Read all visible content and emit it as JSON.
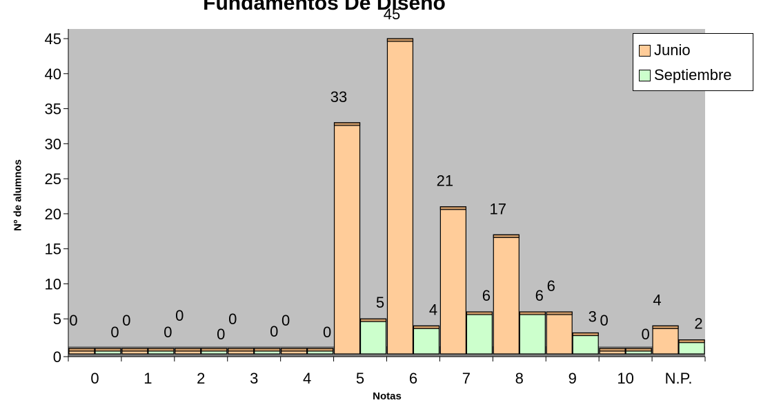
{
  "chart_data": {
    "type": "bar",
    "title": "Fundamentos De Diseño",
    "xlabel": "Notas",
    "ylabel": "Nº de alumnos",
    "categories": [
      "0",
      "1",
      "2",
      "3",
      "4",
      "5",
      "6",
      "7",
      "8",
      "9",
      "10",
      "N.P."
    ],
    "series": [
      {
        "name": "Junio",
        "values": [
          0,
          0,
          0,
          0,
          0,
          33,
          45,
          21,
          17,
          6,
          0,
          4
        ],
        "color": "#FFCC99"
      },
      {
        "name": "Septiembre",
        "values": [
          0,
          0,
          0,
          0,
          0,
          5,
          4,
          6,
          6,
          3,
          0,
          2
        ],
        "color": "#CCFFCC"
      }
    ],
    "ylim": [
      0,
      45
    ],
    "yticks": [
      0,
      5,
      10,
      15,
      20,
      25,
      30,
      35,
      40,
      45
    ],
    "grid": false,
    "legend_position": "top-right",
    "plot_background": "#C0C0C0",
    "floor_color": "#808080",
    "bar_top_color": "#CC9966"
  }
}
